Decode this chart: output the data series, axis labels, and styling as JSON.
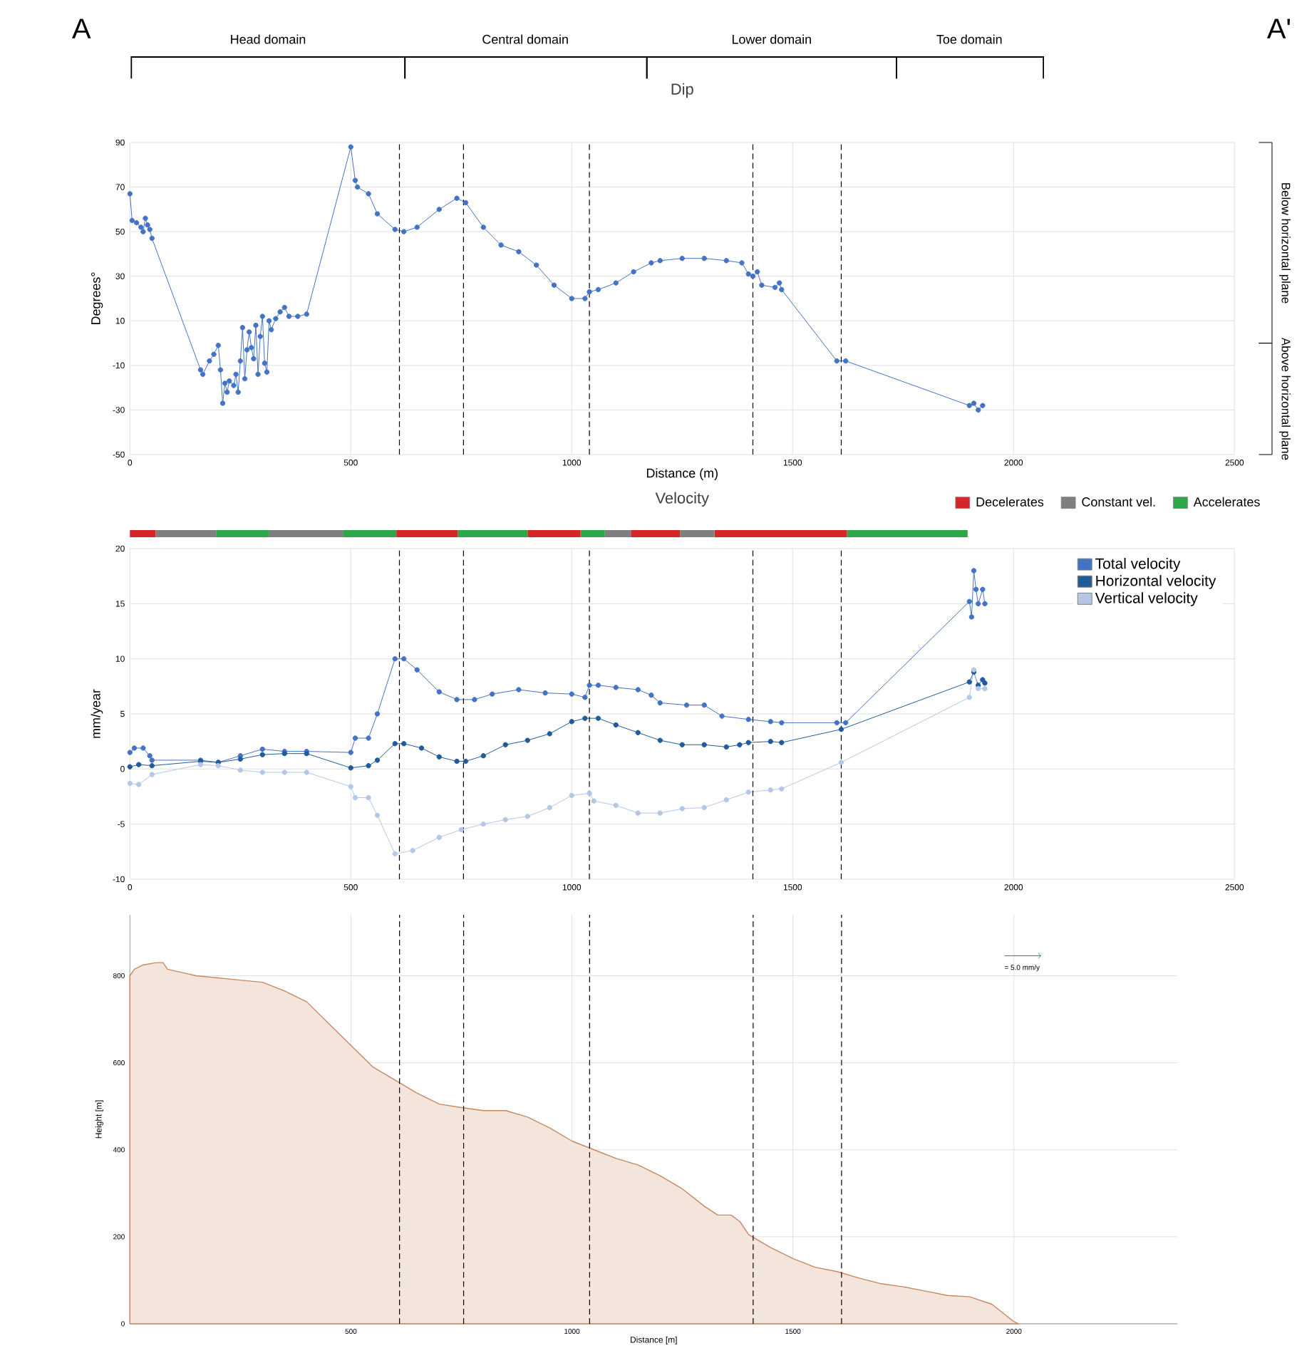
{
  "chart_data": [
    {
      "type": "line",
      "title": "Dip",
      "xlabel": "Distance (m)",
      "ylabel": "Degrees°",
      "xlim": [
        0,
        2500
      ],
      "ylim": [
        -50,
        90
      ],
      "xticks": [
        0,
        500,
        1000,
        1500,
        2000,
        2500
      ],
      "yticks": [
        -50,
        -30,
        -10,
        10,
        30,
        50,
        70,
        90
      ],
      "grid": true,
      "marker": "circle",
      "line_style": "solid",
      "series": [
        {
          "color": "#4472c4",
          "x": [
            0,
            5,
            15,
            25,
            30,
            35,
            40,
            45,
            50,
            160,
            165,
            180,
            190,
            200,
            205,
            210,
            215,
            220,
            225,
            235,
            240,
            245,
            250,
            255,
            260,
            265,
            270,
            275,
            280,
            285,
            290,
            295,
            300,
            305,
            310,
            315,
            320,
            330,
            340,
            350,
            360,
            380,
            400,
            500,
            510,
            515,
            540,
            560,
            600,
            620,
            650,
            700,
            740,
            760,
            800,
            840,
            880,
            920,
            960,
            1000,
            1030,
            1040,
            1060,
            1100,
            1140,
            1180,
            1200,
            1250,
            1300,
            1350,
            1385,
            1400,
            1410,
            1420,
            1430,
            1460,
            1470,
            1475,
            1600,
            1620,
            1900,
            1910,
            1920,
            1930
          ],
          "values": [
            67,
            55,
            54,
            52,
            50,
            56,
            53,
            51,
            47,
            -12,
            -14,
            -8,
            -5,
            -1,
            -12,
            -27,
            -18,
            -22,
            -17,
            -19,
            -14,
            -22,
            -8,
            7,
            -16,
            -3,
            5,
            -2,
            -7,
            8,
            -14,
            3,
            12,
            -9,
            -13,
            10,
            6,
            11,
            14,
            16,
            12,
            12,
            13,
            88,
            73,
            70,
            67,
            58,
            51,
            50,
            52,
            60,
            65,
            63,
            52,
            44,
            41,
            35,
            26,
            20,
            20,
            23,
            24,
            27,
            32,
            36,
            37,
            38,
            38,
            37,
            36,
            31,
            30,
            32,
            26,
            25,
            27,
            24,
            -8,
            -8,
            -28,
            -27,
            -30,
            -28
          ]
        }
      ],
      "ref_lines": [
        {
          "axis": "x",
          "value": 610,
          "line_style": "dashed"
        },
        {
          "axis": "x",
          "value": 755,
          "line_style": "dashed"
        },
        {
          "axis": "x",
          "value": 1040,
          "line_style": "dashed"
        },
        {
          "axis": "x",
          "value": 1410,
          "line_style": "dashed"
        },
        {
          "axis": "x",
          "value": 1610,
          "line_style": "dashed"
        }
      ],
      "annotations": [
        "A",
        "A'",
        "Head domain",
        "Central domain",
        "Lower domain",
        "Toe domain",
        "Below horizontal plane",
        "Above horizontal plane"
      ]
    },
    {
      "type": "bar",
      "title": "Velocity",
      "orientation": "horizontal",
      "stacked": true,
      "categories": [
        null
      ],
      "xlim": [
        0,
        2500
      ],
      "legend": "top right",
      "series": [
        {
          "name": "Decelerates",
          "color": "#d62728",
          "values": [
            58
          ]
        },
        {
          "name": "Constant vel.",
          "color": "#7f7f7f",
          "values": [
            137
          ]
        },
        {
          "name": "Accelerates",
          "color": "#2ca84a",
          "values": [
            119
          ]
        },
        {
          "color": "#7f7f7f",
          "values": [
            168
          ]
        },
        {
          "color": "#2ca84a",
          "values": [
            121
          ]
        },
        {
          "color": "#d62728",
          "values": [
            139
          ]
        },
        {
          "color": "#2ca84a",
          "values": [
            158
          ]
        },
        {
          "color": "#d62728",
          "values": [
            120
          ]
        },
        {
          "color": "#2ca84a",
          "values": [
            55
          ]
        },
        {
          "color": "#7f7f7f",
          "values": [
            60
          ]
        },
        {
          "color": "#d62728",
          "values": [
            110
          ]
        },
        {
          "color": "#7f7f7f",
          "values": [
            78
          ]
        },
        {
          "color": "#d62728",
          "values": [
            300
          ]
        },
        {
          "color": "#2ca84a",
          "values": [
            273
          ]
        }
      ]
    },
    {
      "type": "line",
      "ylabel": "mm/year",
      "xlim": [
        0,
        2500
      ],
      "ylim": [
        -10,
        20
      ],
      "xticks": [
        0,
        500,
        1000,
        1500,
        2000,
        2500
      ],
      "yticks": [
        -10,
        -5,
        0,
        5,
        10,
        15,
        20
      ],
      "grid": true,
      "marker": "circle",
      "line_style": "solid",
      "legend": "top right",
      "series": [
        {
          "name": "Total velocity",
          "color": "#4472c4",
          "x": [
            0,
            10,
            30,
            45,
            50,
            160,
            200,
            250,
            300,
            350,
            400,
            500,
            510,
            540,
            560,
            600,
            620,
            650,
            700,
            740,
            780,
            820,
            880,
            940,
            1000,
            1030,
            1040,
            1060,
            1100,
            1150,
            1180,
            1200,
            1260,
            1300,
            1340,
            1400,
            1450,
            1475,
            1600,
            1620,
            1900,
            1905,
            1910,
            1915,
            1920,
            1930,
            1935
          ],
          "values": [
            1.5,
            1.9,
            1.9,
            1.2,
            0.8,
            0.8,
            0.6,
            1.2,
            1.8,
            1.6,
            1.6,
            1.5,
            2.8,
            2.8,
            5,
            10,
            10,
            9,
            7,
            6.3,
            6.3,
            6.8,
            7.2,
            6.9,
            6.8,
            6.5,
            7.6,
            7.6,
            7.4,
            7.2,
            6.7,
            6,
            5.8,
            5.8,
            4.8,
            4.5,
            4.3,
            4.2,
            4.2,
            4.2,
            15.2,
            13.8,
            18,
            16.3,
            15,
            16.3,
            15
          ]
        },
        {
          "name": "Horizontal velocity",
          "color": "#1f5c99",
          "x": [
            0,
            20,
            50,
            160,
            200,
            250,
            300,
            350,
            400,
            500,
            540,
            560,
            600,
            620,
            660,
            700,
            740,
            760,
            800,
            850,
            900,
            950,
            1000,
            1030,
            1060,
            1100,
            1150,
            1200,
            1250,
            1300,
            1350,
            1380,
            1400,
            1450,
            1475,
            1610,
            1900,
            1910,
            1920,
            1930,
            1935
          ],
          "values": [
            0.2,
            0.4,
            0.3,
            0.7,
            0.6,
            0.9,
            1.3,
            1.4,
            1.4,
            0.1,
            0.3,
            0.8,
            2.3,
            2.3,
            1.9,
            1.1,
            0.7,
            0.7,
            1.2,
            2.2,
            2.6,
            3.2,
            4.3,
            4.6,
            4.6,
            4.0,
            3.3,
            2.6,
            2.2,
            2.2,
            2.0,
            2.2,
            2.4,
            2.5,
            2.4,
            3.6,
            7.9,
            8.8,
            7.6,
            8.1,
            7.8
          ]
        },
        {
          "name": "Vertical velocity",
          "color": "#b4c7e7",
          "x": [
            0,
            20,
            50,
            160,
            200,
            250,
            300,
            350,
            400,
            500,
            510,
            540,
            560,
            600,
            640,
            700,
            750,
            800,
            850,
            900,
            950,
            1000,
            1040,
            1050,
            1100,
            1150,
            1200,
            1250,
            1300,
            1350,
            1400,
            1450,
            1475,
            1610,
            1900,
            1910,
            1920,
            1935
          ],
          "values": [
            -1.3,
            -1.4,
            -0.5,
            0.4,
            0.3,
            -0.1,
            -0.3,
            -0.3,
            -0.3,
            -1.6,
            -2.6,
            -2.6,
            -4.2,
            -7.7,
            -7.4,
            -6.2,
            -5.5,
            -5,
            -4.6,
            -4.3,
            -3.5,
            -2.4,
            -2.2,
            -2.9,
            -3.3,
            -4,
            -4,
            -3.6,
            -3.5,
            -2.8,
            -2.1,
            -1.9,
            -1.8,
            0.6,
            6.5,
            9,
            7.3,
            7.3
          ]
        }
      ],
      "ref_lines": [
        {
          "axis": "x",
          "value": 610,
          "line_style": "dashed"
        },
        {
          "axis": "x",
          "value": 755,
          "line_style": "dashed"
        },
        {
          "axis": "x",
          "value": 1040,
          "line_style": "dashed"
        },
        {
          "axis": "x",
          "value": 1410,
          "line_style": "dashed"
        },
        {
          "axis": "x",
          "value": 1610,
          "line_style": "dashed"
        }
      ]
    },
    {
      "type": "area",
      "xlabel": "Distance [m]",
      "ylabel": "Height [m]",
      "xlim": [
        0,
        2370
      ],
      "ylim": [
        0,
        940
      ],
      "xticks": [
        500,
        1000,
        1500,
        2000
      ],
      "yticks": [
        0,
        200,
        400,
        600,
        800
      ],
      "grid": true,
      "series": [
        {
          "color": "#c8875f",
          "x": [
            0,
            10,
            30,
            60,
            75,
            85,
            150,
            250,
            300,
            350,
            400,
            450,
            500,
            550,
            600,
            650,
            700,
            750,
            800,
            850,
            900,
            950,
            1000,
            1050,
            1100,
            1150,
            1200,
            1250,
            1300,
            1330,
            1360,
            1380,
            1400,
            1450,
            1500,
            1550,
            1600,
            1650,
            1700,
            1750,
            1800,
            1850,
            1900,
            1950,
            2000,
            2010
          ],
          "values": [
            800,
            815,
            825,
            830,
            830,
            815,
            800,
            790,
            785,
            765,
            740,
            690,
            640,
            590,
            560,
            530,
            505,
            497,
            490,
            490,
            475,
            450,
            420,
            400,
            380,
            365,
            340,
            310,
            270,
            250,
            250,
            235,
            205,
            175,
            150,
            130,
            120,
            105,
            92,
            85,
            75,
            65,
            62,
            45,
            5,
            0
          ]
        }
      ],
      "ref_lines": [
        {
          "axis": "x",
          "value": 610,
          "line_style": "dashed"
        },
        {
          "axis": "x",
          "value": 755,
          "line_style": "dashed"
        },
        {
          "axis": "x",
          "value": 1040,
          "line_style": "dashed"
        },
        {
          "axis": "x",
          "value": 1410,
          "line_style": "dashed"
        },
        {
          "axis": "x",
          "value": 1610,
          "line_style": "dashed"
        }
      ],
      "annotations": [
        "= 5.0 mm/y"
      ]
    }
  ]
}
